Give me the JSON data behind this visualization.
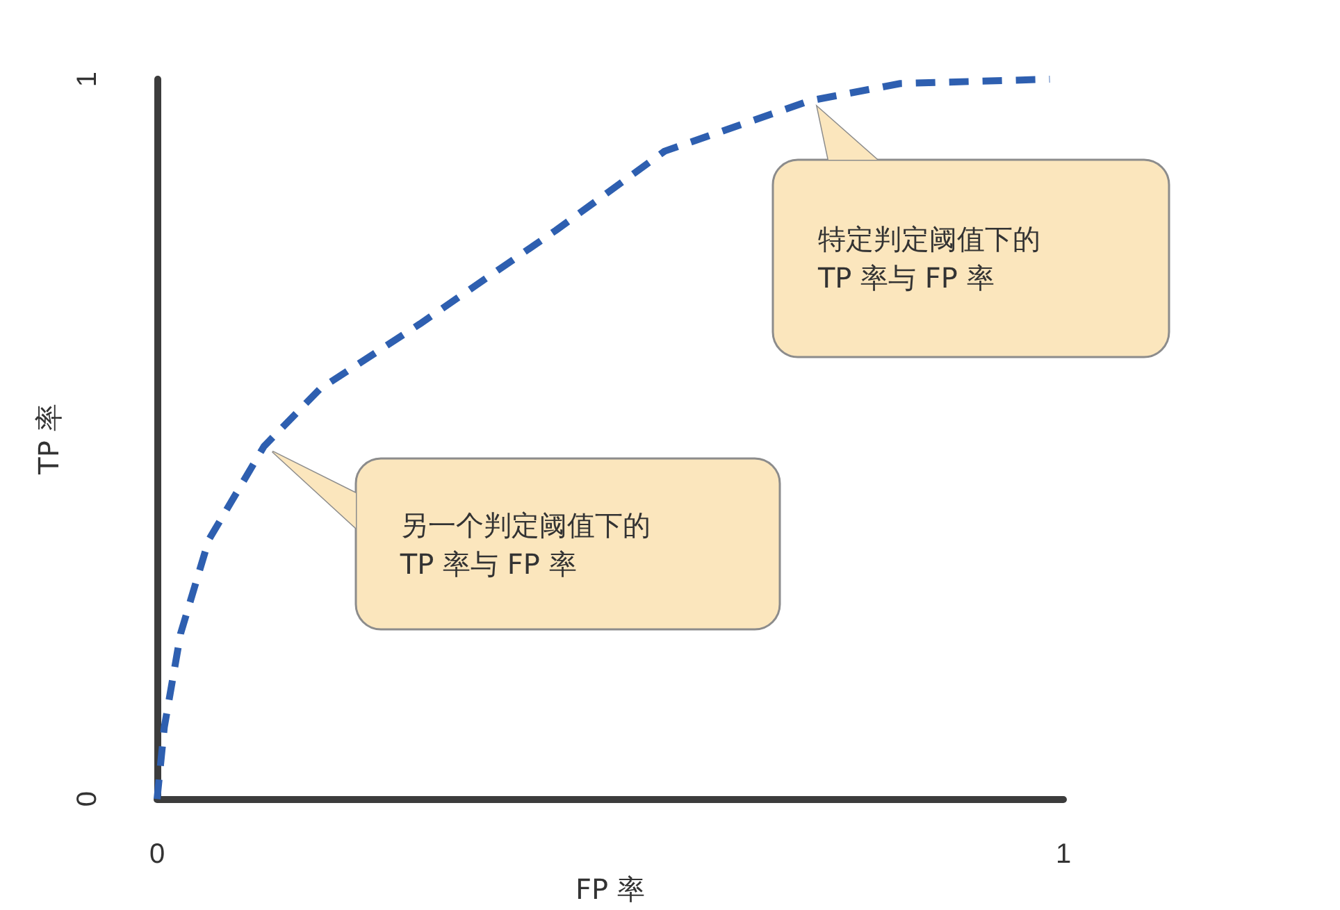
{
  "chart_data": {
    "type": "line",
    "xlabel": "FP 率",
    "ylabel": "TP 率",
    "x": [
      0,
      0.008,
      0.026,
      0.057,
      0.118,
      0.18,
      0.29,
      0.44,
      0.56,
      0.72,
      0.82,
      0.985
    ],
    "series": [
      {
        "color": "#2e5fb0",
        "values": [
          0,
          0.1,
          0.23,
          0.36,
          0.49,
          0.57,
          0.66,
          0.79,
          0.9,
          0.97,
          0.994,
          1.0
        ]
      }
    ],
    "xlim": [
      0,
      1
    ],
    "xticks": [
      0,
      1
    ],
    "ylim": [
      0,
      1
    ],
    "yticks": [
      0,
      1
    ],
    "grid": false,
    "marker": "none",
    "line_style": "dashed",
    "annotations": [
      "特定判定阈值下的\nTP 率与 FP 率",
      "另一个判定阈值下的\nTP 率与 FP 率"
    ]
  }
}
